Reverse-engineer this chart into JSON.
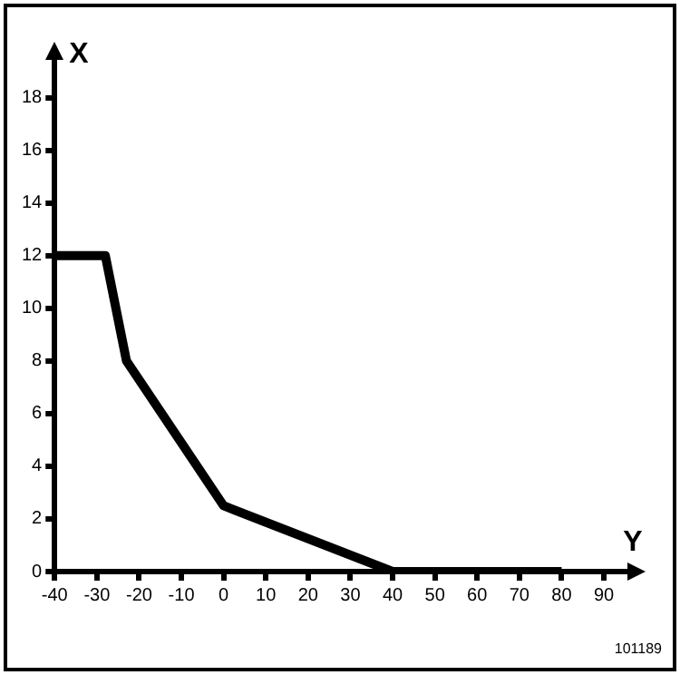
{
  "chart_data": {
    "type": "line",
    "xlabel": "Y",
    "ylabel": "X",
    "annotations": [
      "101189"
    ],
    "x": [
      -40,
      -28,
      -23,
      0,
      40,
      80
    ],
    "series": [
      {
        "color": "#000000",
        "values": [
          12,
          12,
          8,
          2.5,
          0,
          0
        ]
      }
    ],
    "xlim": [
      -40,
      96
    ],
    "xticks": [
      -40,
      -30,
      -20,
      -10,
      0,
      10,
      20,
      30,
      40,
      50,
      60,
      70,
      80,
      90
    ],
    "ylim": [
      0,
      19.5
    ],
    "yticks": [
      0,
      2,
      4,
      6,
      8,
      10,
      12,
      14,
      16,
      18
    ],
    "grid": false,
    "legend": false,
    "marker": "none",
    "line_style": "solid"
  }
}
